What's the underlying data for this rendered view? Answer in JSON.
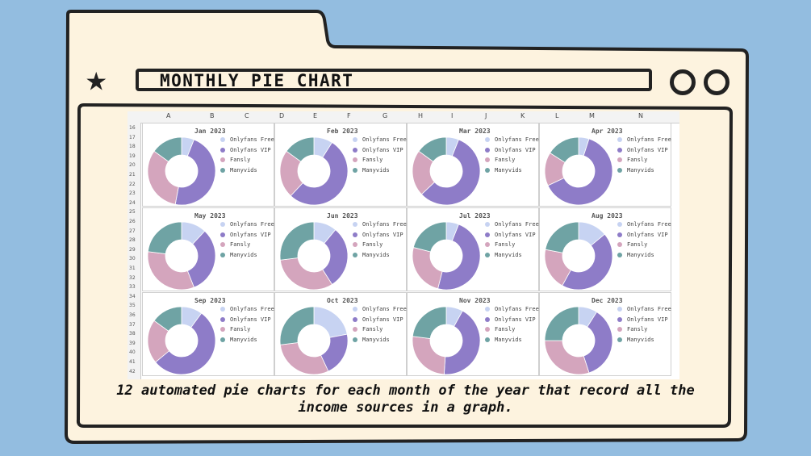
{
  "header": {
    "title": "MONTHLY PIE CHART"
  },
  "caption": {
    "line1": "12 automated pie charts for each month of the year that record all the",
    "line2": "income sources in a graph."
  },
  "sheet": {
    "columns": [
      "A",
      "B",
      "C",
      "D",
      "E",
      "F",
      "G",
      "H",
      "I",
      "J",
      "K",
      "L",
      "M",
      "N"
    ],
    "rows": [
      "16",
      "17",
      "18",
      "19",
      "20",
      "21",
      "22",
      "23",
      "24",
      "25",
      "26",
      "27",
      "28",
      "29",
      "30",
      "31",
      "32",
      "33",
      "34",
      "35",
      "36",
      "37",
      "38",
      "39",
      "40",
      "41",
      "42"
    ]
  },
  "colors": {
    "Onlyfans Free": "#c7d3f2",
    "Onlyfans VIP": "#8e7cc8",
    "Fansly": "#d4a5bd",
    "Manyvids": "#6fa3a4",
    "background": "#93bde0",
    "frame": "#fdf3df"
  },
  "chart_data": [
    {
      "type": "pie",
      "title": "Jan 2023",
      "categories": [
        "Onlyfans Free",
        "Onlyfans VIP",
        "Fansly",
        "Manyvids"
      ],
      "values": [
        6,
        47,
        32,
        15
      ]
    },
    {
      "type": "pie",
      "title": "Feb 2023",
      "categories": [
        "Onlyfans Free",
        "Onlyfans VIP",
        "Fansly",
        "Manyvids"
      ],
      "values": [
        9,
        53,
        23,
        15
      ]
    },
    {
      "type": "pie",
      "title": "Mar 2023",
      "categories": [
        "Onlyfans Free",
        "Onlyfans VIP",
        "Fansly",
        "Manyvids"
      ],
      "values": [
        6,
        57,
        22,
        15
      ]
    },
    {
      "type": "pie",
      "title": "Apr 2023",
      "categories": [
        "Onlyfans Free",
        "Onlyfans VIP",
        "Fansly",
        "Manyvids"
      ],
      "values": [
        5,
        63,
        16,
        16
      ]
    },
    {
      "type": "pie",
      "title": "May 2023",
      "categories": [
        "Onlyfans Free",
        "Onlyfans VIP",
        "Fansly",
        "Manyvids"
      ],
      "values": [
        12,
        32,
        33,
        23
      ]
    },
    {
      "type": "pie",
      "title": "Jun 2023",
      "categories": [
        "Onlyfans Free",
        "Onlyfans VIP",
        "Fansly",
        "Manyvids"
      ],
      "values": [
        11,
        30,
        32,
        27
      ]
    },
    {
      "type": "pie",
      "title": "Jul 2023",
      "categories": [
        "Onlyfans Free",
        "Onlyfans VIP",
        "Fansly",
        "Manyvids"
      ],
      "values": [
        6,
        48,
        25,
        21
      ]
    },
    {
      "type": "pie",
      "title": "Aug 2023",
      "categories": [
        "Onlyfans Free",
        "Onlyfans VIP",
        "Fansly",
        "Manyvids"
      ],
      "values": [
        14,
        44,
        20,
        22
      ]
    },
    {
      "type": "pie",
      "title": "Sep 2023",
      "categories": [
        "Onlyfans Free",
        "Onlyfans VIP",
        "Fansly",
        "Manyvids"
      ],
      "values": [
        10,
        54,
        21,
        15
      ]
    },
    {
      "type": "pie",
      "title": "Oct 2023",
      "categories": [
        "Onlyfans Free",
        "Onlyfans VIP",
        "Fansly",
        "Manyvids"
      ],
      "values": [
        22,
        21,
        30,
        27
      ]
    },
    {
      "type": "pie",
      "title": "Nov 2023",
      "categories": [
        "Onlyfans Free",
        "Onlyfans VIP",
        "Fansly",
        "Manyvids"
      ],
      "values": [
        8,
        43,
        26,
        23
      ]
    },
    {
      "type": "pie",
      "title": "Dec 2023",
      "categories": [
        "Onlyfans Free",
        "Onlyfans VIP",
        "Fansly",
        "Manyvids"
      ],
      "values": [
        9,
        36,
        30,
        25
      ]
    }
  ]
}
